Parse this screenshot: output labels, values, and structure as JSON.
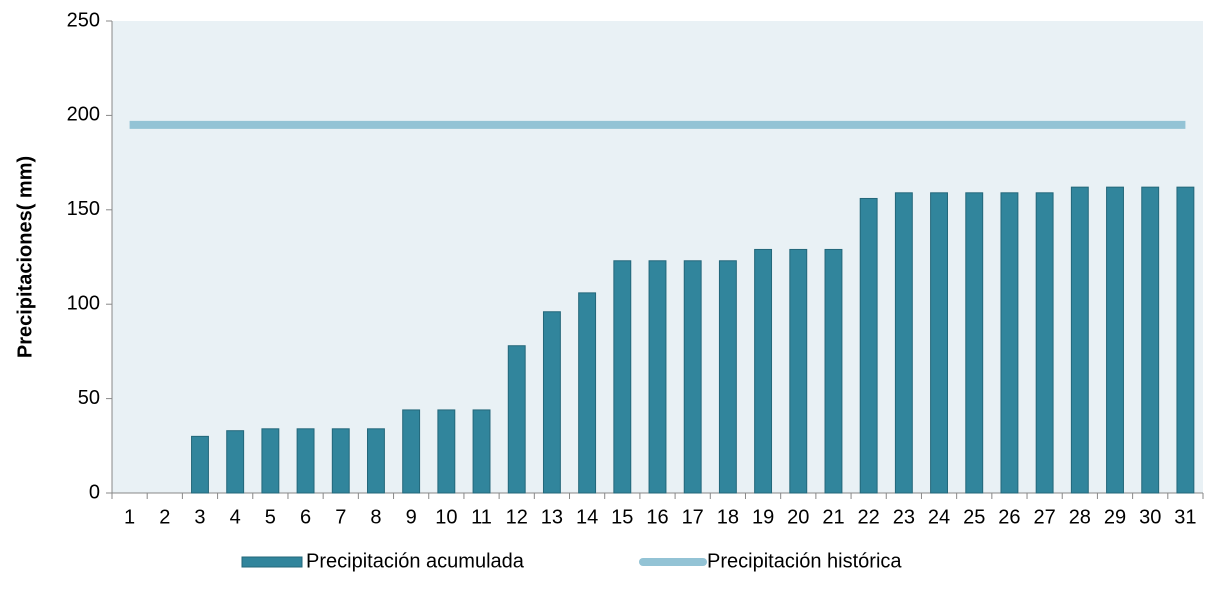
{
  "chart_data": {
    "type": "bar",
    "ylabel": "Precipitaciones( mm)",
    "categories": [
      "1",
      "2",
      "3",
      "4",
      "5",
      "6",
      "7",
      "8",
      "9",
      "10",
      "11",
      "12",
      "13",
      "14",
      "15",
      "16",
      "17",
      "18",
      "19",
      "20",
      "21",
      "22",
      "23",
      "24",
      "25",
      "26",
      "27",
      "28",
      "29",
      "30",
      "31"
    ],
    "series": [
      {
        "name": "Precipitación acumulada",
        "type": "bar",
        "color": "#31859c",
        "values": [
          0,
          0,
          30,
          33,
          34,
          34,
          34,
          34,
          44,
          44,
          44,
          78,
          96,
          106,
          123,
          123,
          123,
          123,
          129,
          129,
          129,
          156,
          159,
          159,
          159,
          159,
          159,
          162,
          162,
          162,
          162
        ]
      },
      {
        "name": "Precipitación histórica",
        "type": "line",
        "color": "#93c3d5",
        "values": [
          195,
          195,
          195,
          195,
          195,
          195,
          195,
          195,
          195,
          195,
          195,
          195,
          195,
          195,
          195,
          195,
          195,
          195,
          195,
          195,
          195,
          195,
          195,
          195,
          195,
          195,
          195,
          195,
          195,
          195,
          195
        ]
      }
    ],
    "ylim": [
      0,
      250
    ],
    "yticks": [
      0,
      50,
      100,
      150,
      200,
      250
    ],
    "grid": false,
    "legend": "bottom"
  }
}
